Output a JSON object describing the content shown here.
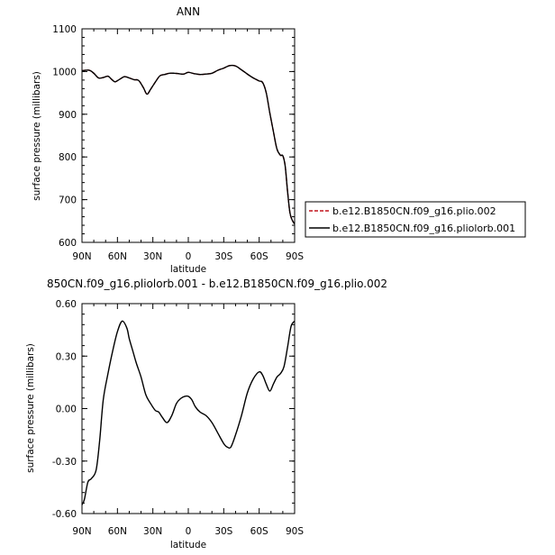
{
  "chart_data": [
    {
      "type": "line",
      "title": "ANN",
      "xlabel": "latitude",
      "ylabel": "surface pressure (millibars)",
      "xticks": [
        "90N",
        "60N",
        "30N",
        "0",
        "30S",
        "60S",
        "90S"
      ],
      "xlim": [
        90,
        -90
      ],
      "ylim": [
        600,
        1100
      ],
      "yticks": [
        "600",
        "700",
        "800",
        "900",
        "1000",
        "1100"
      ],
      "legend_placement": "right",
      "x": [
        90,
        84,
        80,
        76,
        72,
        68,
        65,
        62,
        58,
        54,
        50,
        46,
        42,
        38,
        35,
        32,
        28,
        24,
        20,
        16,
        12,
        8,
        4,
        0,
        -5,
        -10,
        -15,
        -20,
        -25,
        -30,
        -35,
        -40,
        -45,
        -50,
        -55,
        -60,
        -63,
        -66,
        -69,
        -72,
        -75,
        -78,
        -80,
        -82,
        -84,
        -86,
        -88,
        -90
      ],
      "series": [
        {
          "name": "b.e12.B1850CN.f09_g16.plio.002",
          "color": "#c0141c",
          "dash": "dashed",
          "values": [
            1002,
            1003,
            996,
            985,
            986,
            989,
            982,
            976,
            982,
            988,
            985,
            981,
            979,
            962,
            947,
            958,
            975,
            990,
            993,
            996,
            996,
            995,
            994,
            998,
            995,
            993,
            994,
            996,
            1003,
            1008,
            1014,
            1013,
            1004,
            994,
            985,
            978,
            974,
            950,
            903,
            860,
            819,
            804,
            803,
            779,
            720,
            670,
            652,
            643
          ]
        },
        {
          "name": "b.e12.B1850CN.f09_g16.pliolorb.001",
          "color": "#000000",
          "dash": "solid",
          "values": [
            1002,
            1003,
            996,
            985,
            986,
            989,
            982,
            976,
            982,
            988,
            985,
            981,
            979,
            962,
            947,
            958,
            975,
            990,
            993,
            996,
            996,
            995,
            994,
            998,
            995,
            993,
            994,
            996,
            1003,
            1008,
            1014,
            1013,
            1004,
            994,
            985,
            978,
            974,
            950,
            903,
            860,
            819,
            804,
            803,
            779,
            720,
            670,
            652,
            643
          ]
        }
      ]
    },
    {
      "type": "line",
      "title": "850CN.f09_g16.pliolorb.001 - b.e12.B1850CN.f09_g16.plio.002",
      "xlabel": "latitude",
      "ylabel": "surface pressure (millibars)",
      "xticks": [
        "90N",
        "60N",
        "30N",
        "0",
        "30S",
        "60S",
        "90S"
      ],
      "xlim": [
        90,
        -90
      ],
      "ylim": [
        -0.6,
        0.6
      ],
      "yticks": [
        "-0.60",
        "-0.30",
        "0.00",
        "0.30",
        "0.60"
      ],
      "x": [
        90,
        88,
        85,
        82,
        78,
        75,
        72,
        68,
        64,
        60,
        56,
        52,
        50,
        47,
        44,
        40,
        36,
        32,
        28,
        25,
        22,
        18,
        14,
        10,
        6,
        3,
        0,
        -3,
        -6,
        -10,
        -15,
        -20,
        -25,
        -30,
        -33,
        -36,
        -40,
        -45,
        -50,
        -55,
        -60,
        -63,
        -66,
        -69,
        -72,
        -75,
        -78,
        -81,
        -84,
        -87,
        -90
      ],
      "series": [
        {
          "name": "",
          "color": "#000000",
          "values": [
            -0.55,
            -0.52,
            -0.42,
            -0.4,
            -0.35,
            -0.18,
            0.05,
            0.2,
            0.33,
            0.44,
            0.5,
            0.46,
            0.4,
            0.33,
            0.26,
            0.18,
            0.08,
            0.03,
            -0.01,
            -0.02,
            -0.05,
            -0.08,
            -0.04,
            0.03,
            0.06,
            0.07,
            0.07,
            0.05,
            0.01,
            -0.02,
            -0.04,
            -0.08,
            -0.14,
            -0.2,
            -0.22,
            -0.22,
            -0.15,
            -0.04,
            0.09,
            0.17,
            0.21,
            0.19,
            0.14,
            0.1,
            0.14,
            0.18,
            0.2,
            0.24,
            0.35,
            0.47,
            0.5
          ]
        }
      ]
    }
  ]
}
